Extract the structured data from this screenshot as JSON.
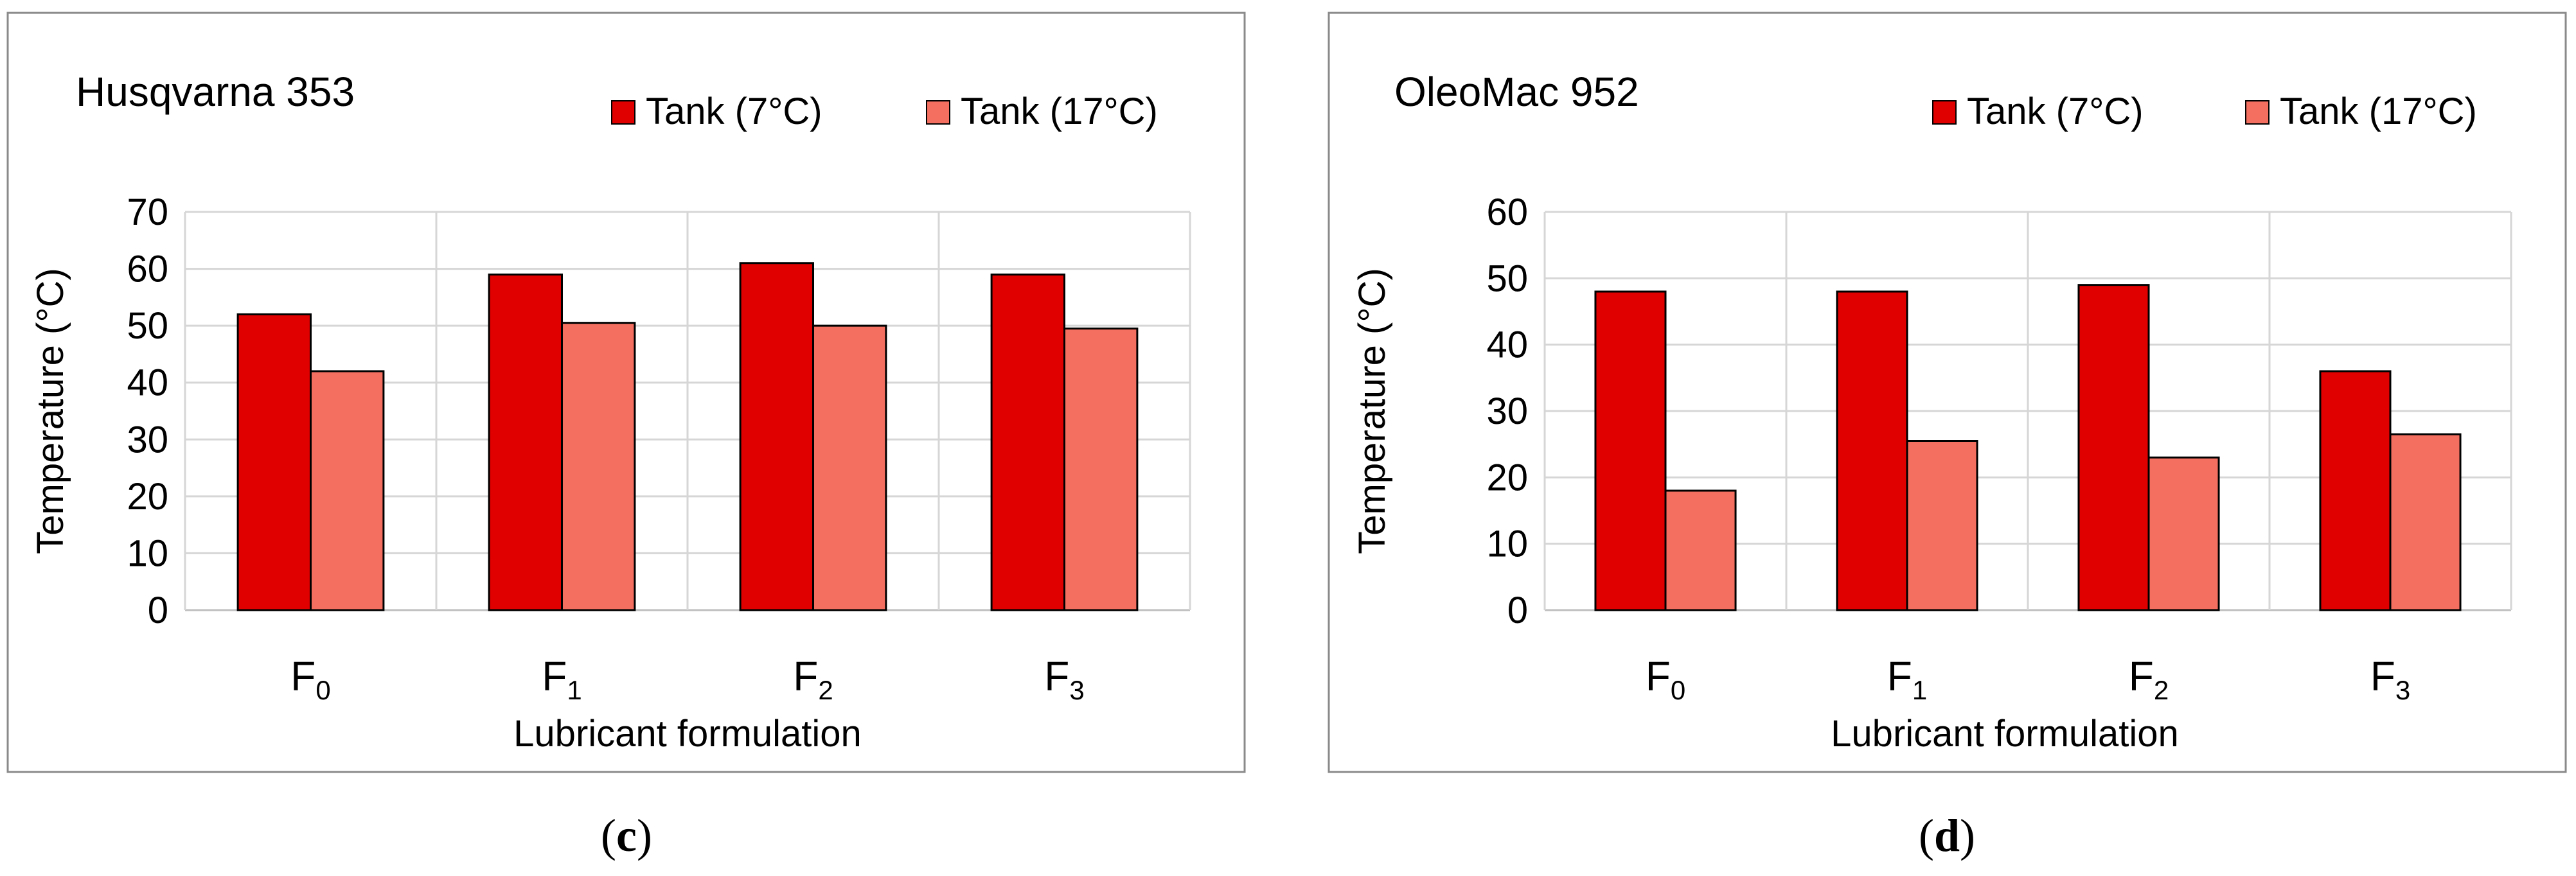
{
  "colors": {
    "series_1": "#e00000",
    "series_2": "#f46f60",
    "bar_edge": "#000000"
  },
  "chart_data": [
    {
      "type": "bar",
      "title": "Husqvarna 353",
      "caption_open": "(",
      "caption_letter": "c",
      "caption_close": ")",
      "xlabel": "Lubricant formulation",
      "ylabel": "Temperature (°C)",
      "categories": [
        {
          "base": "F",
          "sub": "0"
        },
        {
          "base": "F",
          "sub": "1"
        },
        {
          "base": "F",
          "sub": "2"
        },
        {
          "base": "F",
          "sub": "3"
        }
      ],
      "series": [
        {
          "name": "Tank (7°C)",
          "values": [
            52,
            59,
            61,
            59
          ]
        },
        {
          "name": "Tank (17°C)",
          "values": [
            42,
            50.5,
            50,
            49.5
          ]
        }
      ],
      "ylim": [
        0,
        70
      ],
      "yticks": [
        "0",
        "10",
        "20",
        "30",
        "40",
        "50",
        "60",
        "70"
      ],
      "grid": true,
      "legend_position": "top-right"
    },
    {
      "type": "bar",
      "title": "OleoMac 952",
      "caption_open": "(",
      "caption_letter": "d",
      "caption_close": ")",
      "xlabel": "Lubricant formulation",
      "ylabel": "Temperature (°C)",
      "categories": [
        {
          "base": "F",
          "sub": "0"
        },
        {
          "base": "F",
          "sub": "1"
        },
        {
          "base": "F",
          "sub": "2"
        },
        {
          "base": "F",
          "sub": "3"
        }
      ],
      "series": [
        {
          "name": "Tank (7°C)",
          "values": [
            48,
            48,
            49,
            36
          ]
        },
        {
          "name": "Tank (17°C)",
          "values": [
            18,
            25.5,
            23,
            26.5
          ]
        }
      ],
      "ylim": [
        0,
        60
      ],
      "yticks": [
        "0",
        "10",
        "20",
        "30",
        "40",
        "50",
        "60"
      ],
      "grid": true,
      "legend_position": "top-right"
    }
  ]
}
